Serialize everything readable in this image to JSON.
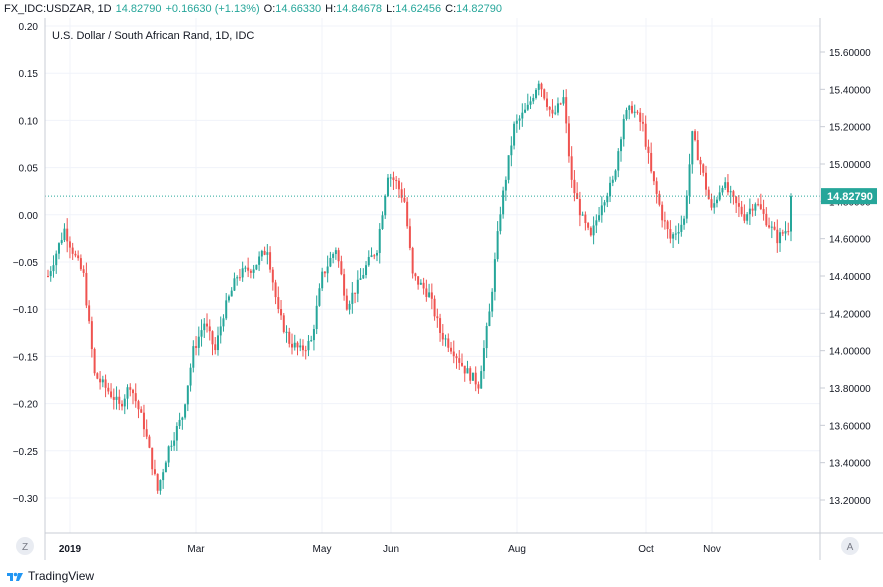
{
  "header": {
    "symbol_interval": "FX_IDC:USDZAR, 1D",
    "last": "14.82790",
    "change": "+0.16630 (+1.13%)",
    "open_label": "O:",
    "open": "14.66330",
    "high_label": "H:",
    "high": "14.84678",
    "low_label": "L:",
    "low": "14.62456",
    "close_label": "C:",
    "close": "14.82790",
    "up_color": "#26a69a",
    "down_color": "#ef5350"
  },
  "chart_title": "U.S. Dollar / South African Rand, 1D, IDC",
  "price_badge": "14.82790",
  "axis_buttons": {
    "left": "Z",
    "right": "A"
  },
  "footer": {
    "brand": "TradingView",
    "icon": "tradingview-logo-icon"
  },
  "chart_data": {
    "type": "candlestick",
    "title": "U.S. Dollar / South African Rand, 1D, IDC",
    "left_axis": {
      "ticks": [
        "0.20",
        "0.15",
        "0.10",
        "0.05",
        "0.00",
        "−0.05",
        "−0.10",
        "−0.15",
        "−0.20",
        "−0.25",
        "−0.30"
      ],
      "range": [
        -0.33,
        0.2
      ]
    },
    "right_axis": {
      "ticks": [
        "15.60000",
        "15.40000",
        "15.20000",
        "15.00000",
        "14.80000",
        "14.60000",
        "14.40000",
        "14.20000",
        "14.00000",
        "13.80000",
        "13.60000",
        "13.40000",
        "13.20000"
      ],
      "range": [
        13.1,
        15.7
      ]
    },
    "x_labels": [
      "2019",
      "Mar",
      "May",
      "Jun",
      "Aug",
      "Oct",
      "Nov"
    ],
    "last_price": 14.8279,
    "anchors": [
      {
        "d": 0,
        "p": 14.4
      },
      {
        "d": 6,
        "p": 14.65
      },
      {
        "d": 10,
        "p": 14.5
      },
      {
        "d": 13,
        "p": 14.4
      },
      {
        "d": 17,
        "p": 13.87
      },
      {
        "d": 24,
        "p": 13.75
      },
      {
        "d": 26,
        "p": 13.7
      },
      {
        "d": 30,
        "p": 13.82
      },
      {
        "d": 35,
        "p": 13.6
      },
      {
        "d": 40,
        "p": 13.25
      },
      {
        "d": 44,
        "p": 13.48
      },
      {
        "d": 49,
        "p": 13.65
      },
      {
        "d": 53,
        "p": 14.0
      },
      {
        "d": 57,
        "p": 14.15
      },
      {
        "d": 61,
        "p": 14.0
      },
      {
        "d": 64,
        "p": 14.2
      },
      {
        "d": 69,
        "p": 14.4
      },
      {
        "d": 75,
        "p": 14.45
      },
      {
        "d": 80,
        "p": 14.55
      },
      {
        "d": 84,
        "p": 14.2
      },
      {
        "d": 88,
        "p": 14.05
      },
      {
        "d": 92,
        "p": 14.0
      },
      {
        "d": 96,
        "p": 14.05
      },
      {
        "d": 100,
        "p": 14.4
      },
      {
        "d": 105,
        "p": 14.55
      },
      {
        "d": 109,
        "p": 14.25
      },
      {
        "d": 113,
        "p": 14.35
      },
      {
        "d": 116,
        "p": 14.45
      },
      {
        "d": 120,
        "p": 14.55
      },
      {
        "d": 124,
        "p": 14.95
      },
      {
        "d": 127,
        "p": 14.9
      },
      {
        "d": 130,
        "p": 14.8
      },
      {
        "d": 133,
        "p": 14.4
      },
      {
        "d": 139,
        "p": 14.3
      },
      {
        "d": 143,
        "p": 14.1
      },
      {
        "d": 148,
        "p": 14.0
      },
      {
        "d": 152,
        "p": 13.9
      },
      {
        "d": 157,
        "p": 13.82
      },
      {
        "d": 161,
        "p": 14.2
      },
      {
        "d": 165,
        "p": 14.75
      },
      {
        "d": 170,
        "p": 15.2
      },
      {
        "d": 175,
        "p": 15.3
      },
      {
        "d": 179,
        "p": 15.45
      },
      {
        "d": 184,
        "p": 15.25
      },
      {
        "d": 188,
        "p": 15.35
      },
      {
        "d": 191,
        "p": 14.9
      },
      {
        "d": 195,
        "p": 14.7
      },
      {
        "d": 198,
        "p": 14.6
      },
      {
        "d": 202,
        "p": 14.8
      },
      {
        "d": 206,
        "p": 14.9
      },
      {
        "d": 210,
        "p": 15.25
      },
      {
        "d": 213,
        "p": 15.3
      },
      {
        "d": 217,
        "p": 15.2
      },
      {
        "d": 220,
        "p": 14.95
      },
      {
        "d": 224,
        "p": 14.72
      },
      {
        "d": 227,
        "p": 14.6
      },
      {
        "d": 232,
        "p": 14.7
      },
      {
        "d": 235,
        "p": 15.15
      },
      {
        "d": 238,
        "p": 15.0
      },
      {
        "d": 242,
        "p": 14.75
      },
      {
        "d": 246,
        "p": 14.9
      },
      {
        "d": 250,
        "p": 14.8
      },
      {
        "d": 254,
        "p": 14.72
      },
      {
        "d": 258,
        "p": 14.8
      },
      {
        "d": 262,
        "p": 14.7
      },
      {
        "d": 266,
        "p": 14.6
      },
      {
        "d": 270,
        "p": 14.66
      },
      {
        "d": 271,
        "p": 14.8279
      }
    ]
  }
}
